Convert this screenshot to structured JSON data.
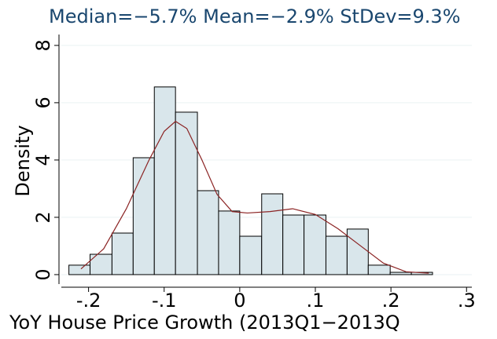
{
  "chart_data": {
    "type": "histogram",
    "title": "Median=−5.7% Mean=−2.9% StDev=9.3%",
    "x_label": "YoY House Price Growth (2013Q1−2013Q",
    "y_label": "Density",
    "bins": [
      -0.226,
      -0.198,
      -0.169,
      -0.141,
      -0.113,
      -0.085,
      -0.056,
      -0.028,
      0.0,
      0.029,
      0.057,
      0.085,
      0.114,
      0.142,
      0.17,
      0.199,
      0.227,
      0.255
    ],
    "values": [
      0.33,
      0.71,
      1.45,
      4.08,
      6.55,
      5.67,
      2.93,
      2.22,
      1.34,
      2.82,
      2.08,
      2.08,
      1.34,
      1.59,
      0.33,
      0.08,
      0.08
    ],
    "color": "#d9e6eb",
    "density": {
      "name": "Kernel density",
      "color": "#8b2323",
      "x": [
        -0.21,
        -0.18,
        -0.15,
        -0.12,
        -0.1,
        -0.085,
        -0.07,
        -0.05,
        -0.03,
        -0.01,
        0.01,
        0.04,
        0.07,
        0.1,
        0.13,
        0.16,
        0.19,
        0.22,
        0.25
      ],
      "values": [
        0.2,
        0.9,
        2.3,
        4.0,
        5.0,
        5.35,
        5.1,
        4.0,
        2.8,
        2.2,
        2.15,
        2.2,
        2.3,
        2.1,
        1.6,
        1.0,
        0.4,
        0.1,
        0.05
      ]
    },
    "xlim": [
      -0.236,
      0.307
    ],
    "ylim": [
      -0.33,
      8.38
    ],
    "xticks": [
      {
        "value": -0.2,
        "label": "-.2"
      },
      {
        "value": -0.1,
        "label": "-.1"
      },
      0,
      {
        "value": 0.1,
        "label": ".1"
      },
      {
        "value": 0.2,
        "label": ".2"
      },
      {
        "value": 0.3,
        "label": ".3"
      }
    ],
    "yticks": [
      0,
      2,
      4,
      6,
      8
    ],
    "grid": true
  }
}
